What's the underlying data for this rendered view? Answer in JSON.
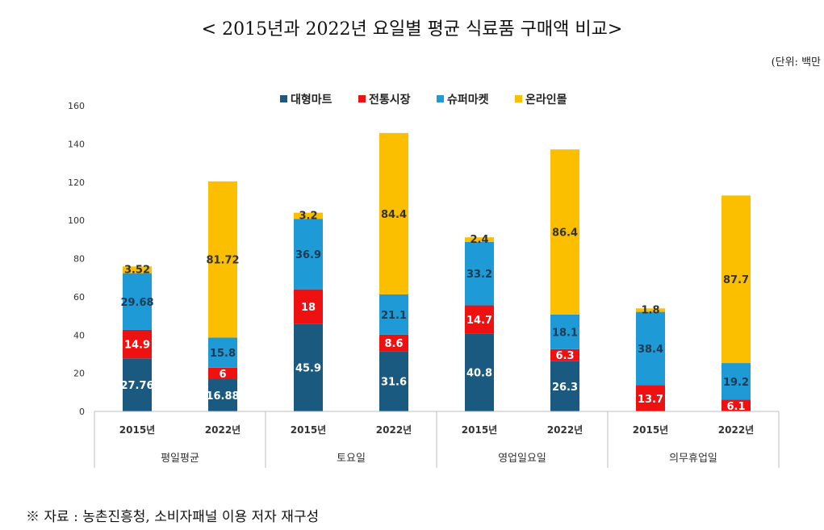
{
  "title": "< 2015년과 2022년 요일별 평균 식료품 구매액 비교>",
  "unit": "(단위: 백만",
  "source": "※ 자료 : 농촌진흥청, 소비자패널 이용 저자 재구성",
  "chart_data": {
    "type": "bar",
    "stacked": true,
    "ylim": [
      0,
      160
    ],
    "yticks": [
      0,
      20,
      40,
      60,
      80,
      100,
      120,
      140,
      160
    ],
    "legend_position": "top",
    "grid": false,
    "categories": [
      "2015년",
      "2022년",
      "2015년",
      "2022년",
      "2015년",
      "2022년",
      "2015년",
      "2022년"
    ],
    "groups": [
      "평일평균",
      "토요일",
      "영업일요일",
      "의무휴업일"
    ],
    "series": [
      {
        "name": "대형마트",
        "color": "#1b5a80",
        "values": [
          27.76,
          16.88,
          45.9,
          31.6,
          40.8,
          26.3,
          0,
          0
        ],
        "labels": [
          "27.76",
          "16.88",
          "45.9",
          "31.6",
          "40.8",
          "26.3",
          "",
          ""
        ]
      },
      {
        "name": "전통시장",
        "color": "#ee1111",
        "values": [
          14.9,
          6,
          18,
          8.6,
          14.7,
          6.3,
          13.7,
          6.1
        ],
        "labels": [
          "14.9",
          "6",
          "18",
          "8.6",
          "14.7",
          "6.3",
          "13.7",
          "6.1"
        ]
      },
      {
        "name": "슈퍼마켓",
        "color": "#1e9ad6",
        "values": [
          29.68,
          15.8,
          36.9,
          21.1,
          33.2,
          18.1,
          38.4,
          19.2
        ],
        "labels": [
          "29.68",
          "15.8",
          "36.9",
          "21.1",
          "33.2",
          "18.1",
          "38.4",
          "19.2"
        ]
      },
      {
        "name": "온라인몰",
        "color": "#fbbf00",
        "values": [
          3.52,
          81.72,
          3.2,
          84.4,
          2.4,
          86.4,
          1.8,
          87.7
        ],
        "labels": [
          "3.52",
          "81.72",
          "3.2",
          "84.4",
          "2.4",
          "86.4",
          "1.8",
          "87.7"
        ]
      }
    ]
  }
}
